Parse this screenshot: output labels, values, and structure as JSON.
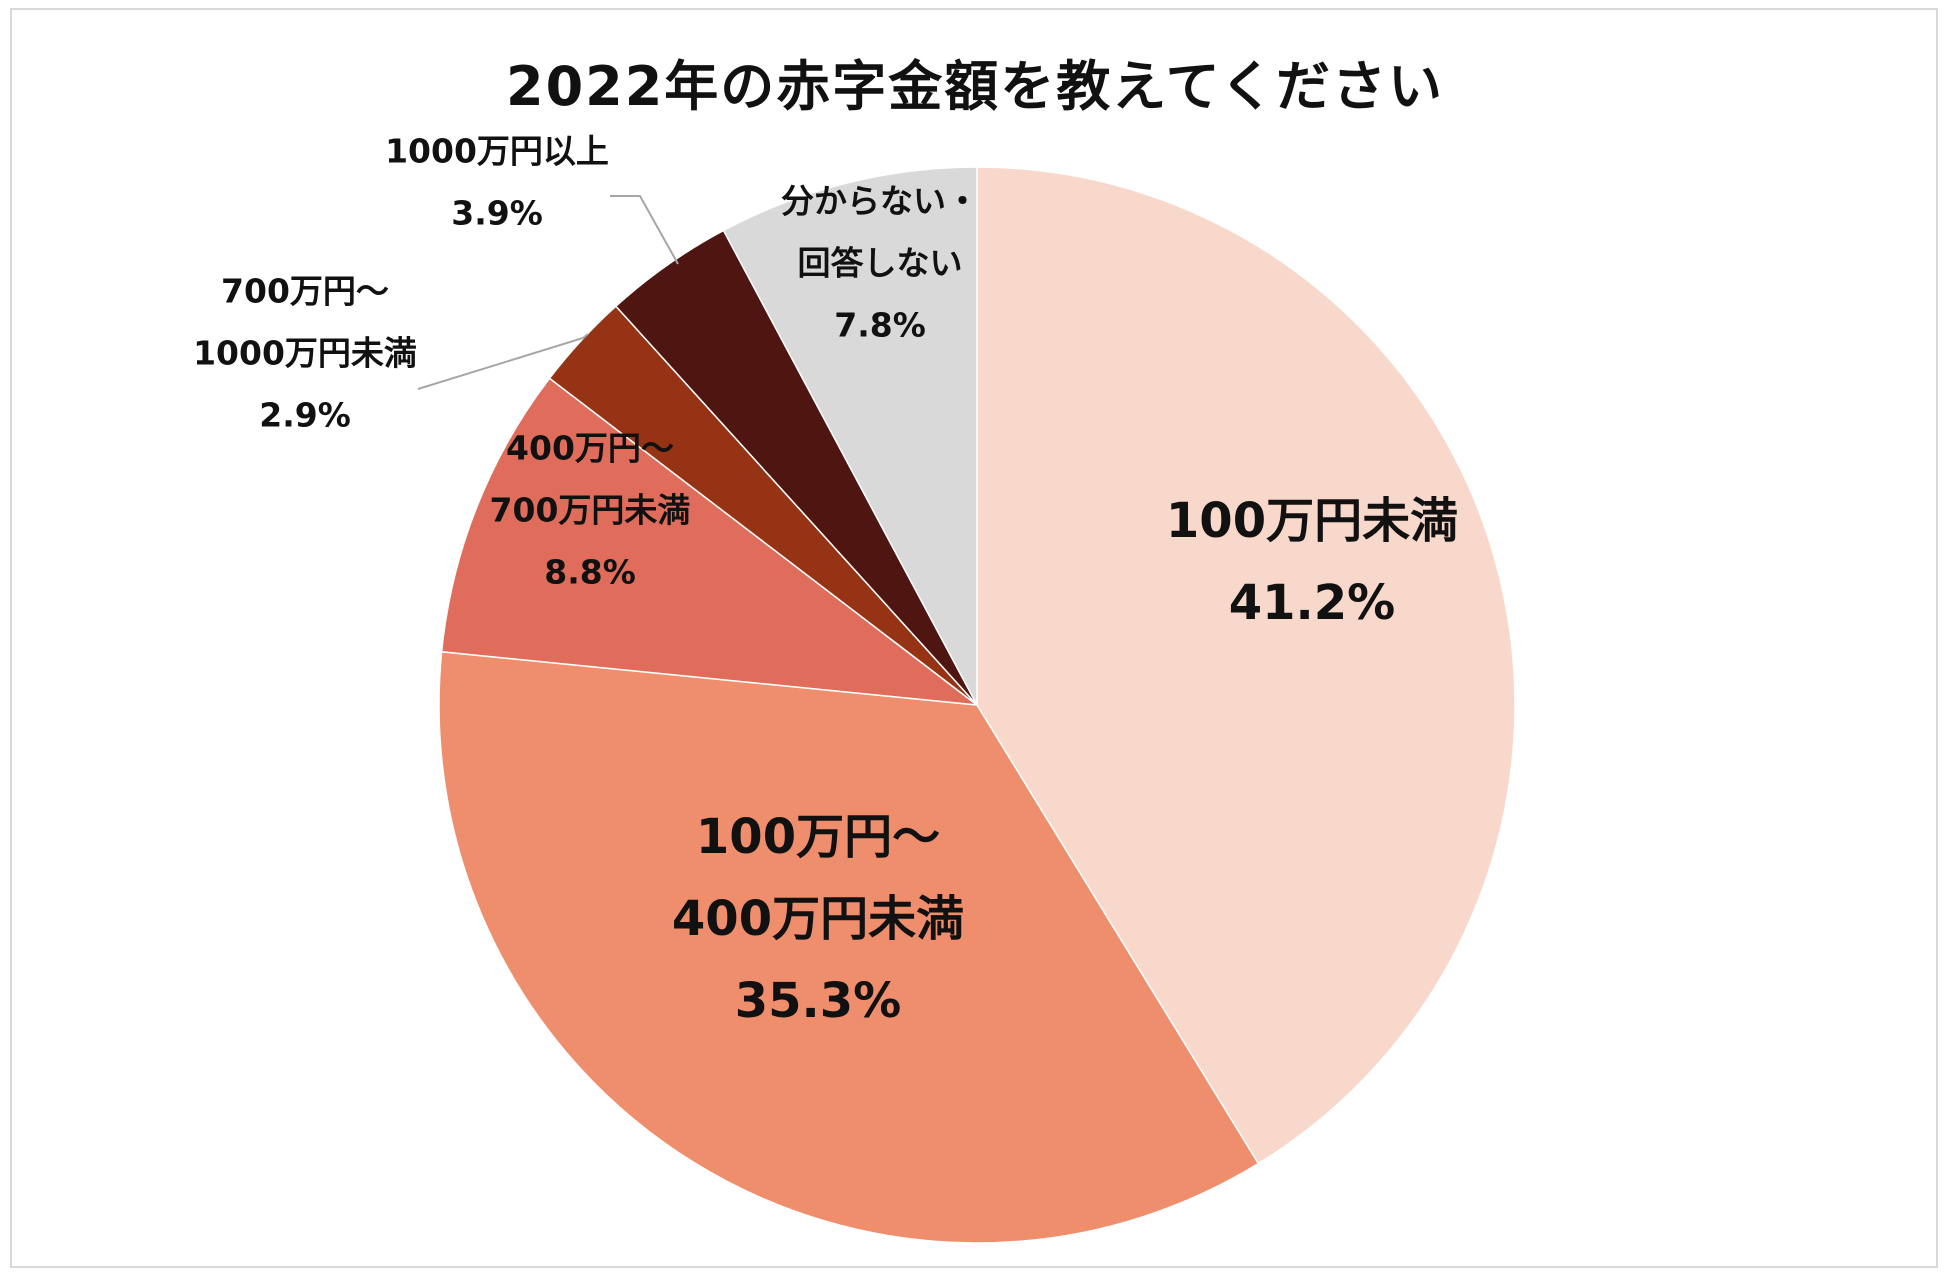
{
  "chart_data": {
    "type": "pie",
    "title": "2022年の赤字金額を教えてください",
    "slices": [
      {
        "label_lines": [
          "100万円未満"
        ],
        "value": 41.2,
        "value_text": "41.2%",
        "color": "#f9d8cc"
      },
      {
        "label_lines": [
          "100万円～",
          "400万円未満"
        ],
        "value": 35.3,
        "value_text": "35.3%",
        "color": "#ef8e6d"
      },
      {
        "label_lines": [
          "400万円～",
          "700万円未満"
        ],
        "value": 8.8,
        "value_text": "8.8%",
        "color": "#e06d5c"
      },
      {
        "label_lines": [
          "700万円～",
          "1000万円未満"
        ],
        "value": 2.9,
        "value_text": "2.9%",
        "color": "#963314"
      },
      {
        "label_lines": [
          "1000万円以上"
        ],
        "value": 3.9,
        "value_text": "3.9%",
        "color": "#4f1511"
      },
      {
        "label_lines": [
          "分からない・",
          "回答しない"
        ],
        "value": 7.8,
        "value_text": "7.8%",
        "color": "#d9d9d9"
      }
    ],
    "start": "12 o'clock",
    "direction": "clockwise",
    "legend": "none",
    "label_placement": "data labels on slices; small slices labeled outside with leader lines"
  }
}
